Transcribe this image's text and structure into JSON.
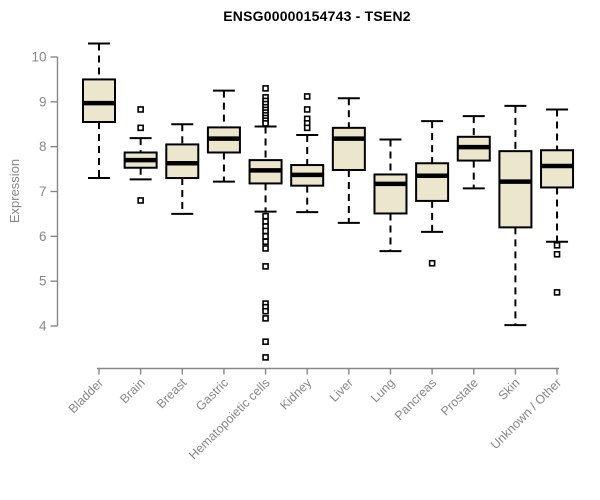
{
  "chart_data": {
    "type": "boxplot",
    "title": "ENSG00000154743 - TSEN2",
    "ylabel": "Expression",
    "xlabel": "",
    "y_ticks": [
      4,
      5,
      6,
      7,
      8,
      9,
      10
    ],
    "ylim": [
      3.1,
      10.5
    ],
    "grid": false,
    "legend": "none",
    "categories": [
      "Bladder",
      "Brain",
      "Breast",
      "Gastric",
      "Hematopoietic cells",
      "Kidney",
      "Liver",
      "Lung",
      "Pancreas",
      "Prostate",
      "Skin",
      "Unknown / Other"
    ],
    "series": [
      {
        "name": "Bladder",
        "whisker_low": 7.3,
        "q1": 8.55,
        "median": 8.97,
        "q3": 9.5,
        "whisker_high": 10.3,
        "outliers": []
      },
      {
        "name": "Brain",
        "whisker_low": 7.27,
        "q1": 7.53,
        "median": 7.7,
        "q3": 7.87,
        "whisker_high": 8.19,
        "outliers": [
          8.83,
          8.42,
          6.8
        ]
      },
      {
        "name": "Breast",
        "whisker_low": 6.5,
        "q1": 7.3,
        "median": 7.63,
        "q3": 8.05,
        "whisker_high": 8.5,
        "outliers": []
      },
      {
        "name": "Gastric",
        "whisker_low": 7.22,
        "q1": 7.87,
        "median": 8.18,
        "q3": 8.43,
        "whisker_high": 9.25,
        "outliers": []
      },
      {
        "name": "Hematopoietic cells",
        "whisker_low": 6.55,
        "q1": 7.18,
        "median": 7.47,
        "q3": 7.7,
        "whisker_high": 8.45,
        "outliers": [
          9.3,
          9.1,
          9.02,
          8.95,
          8.88,
          8.82,
          8.76,
          8.7,
          8.64,
          8.58,
          8.52,
          6.45,
          6.33,
          6.22,
          6.12,
          6.0,
          5.88,
          5.73,
          5.33,
          4.5,
          4.42,
          4.33,
          4.17,
          3.65,
          3.3
        ]
      },
      {
        "name": "Kidney",
        "whisker_low": 6.54,
        "q1": 7.13,
        "median": 7.37,
        "q3": 7.59,
        "whisker_high": 8.26,
        "outliers": [
          9.12,
          8.83,
          8.62,
          8.52,
          8.42
        ]
      },
      {
        "name": "Liver",
        "whisker_low": 6.3,
        "q1": 7.48,
        "median": 8.18,
        "q3": 8.42,
        "whisker_high": 9.08,
        "outliers": []
      },
      {
        "name": "Lung",
        "whisker_low": 5.67,
        "q1": 6.51,
        "median": 7.17,
        "q3": 7.38,
        "whisker_high": 8.16,
        "outliers": []
      },
      {
        "name": "Pancreas",
        "whisker_low": 6.1,
        "q1": 6.79,
        "median": 7.35,
        "q3": 7.63,
        "whisker_high": 8.57,
        "outliers": [
          5.4
        ]
      },
      {
        "name": "Prostate",
        "whisker_low": 7.07,
        "q1": 7.69,
        "median": 7.99,
        "q3": 8.22,
        "whisker_high": 8.68,
        "outliers": []
      },
      {
        "name": "Skin",
        "whisker_low": 4.02,
        "q1": 6.2,
        "median": 7.22,
        "q3": 7.9,
        "whisker_high": 8.91,
        "outliers": []
      },
      {
        "name": "Unknown / Other",
        "whisker_low": 5.88,
        "q1": 7.09,
        "median": 7.57,
        "q3": 7.92,
        "whisker_high": 8.83,
        "outliers": [
          5.8,
          5.6,
          4.75
        ]
      }
    ],
    "colors": {
      "box_fill": "#ECE7CC",
      "box_stroke": "#000000",
      "median": "#000000",
      "axis": "#878787",
      "tick_label": "#878787",
      "title": "#000000",
      "background": "#ffffff"
    }
  }
}
